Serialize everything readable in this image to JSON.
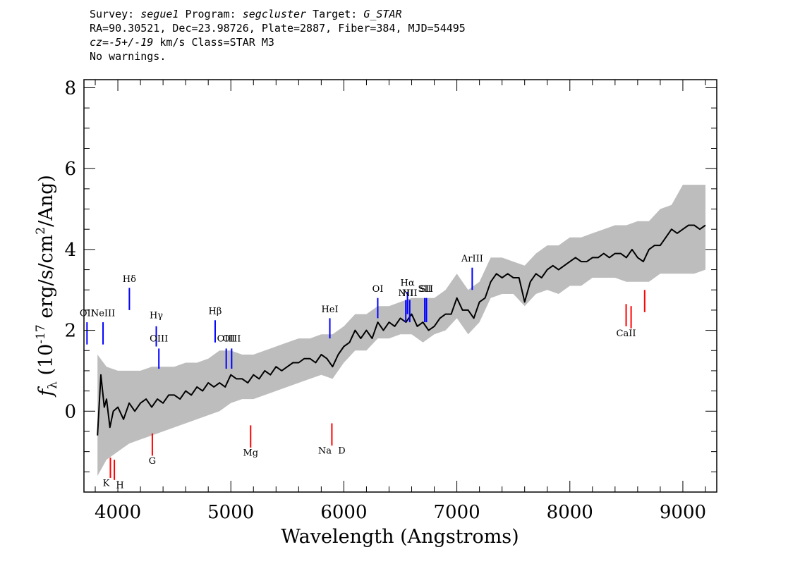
{
  "header": {
    "line1": {
      "survey_label": "Survey: ",
      "survey": "segue1",
      "program_label": " Program: ",
      "program": "segcluster",
      "target_label": " Target: ",
      "target": "G_STAR"
    },
    "line2": "RA=90.30521, Dec=23.98726, Plate=2887, Fiber=384, MJD=54495",
    "line3": {
      "cz_label": "cz=",
      "cz_value": "-5+/-19",
      "rest": " km/s Class=STAR M3"
    },
    "line4": "No warnings."
  },
  "chart_data": {
    "type": "line",
    "xlabel": "Wavelength (Angstroms)",
    "ylabel_parts": {
      "f": "f",
      "sub": "λ",
      "pre": " (10",
      "exp": "-17",
      "mid": " erg/s/cm",
      "exp2": "2",
      "post": "/Ang)"
    },
    "xlim": [
      3700,
      9300
    ],
    "ylim": [
      -2.0,
      8.2
    ],
    "xticks": [
      4000,
      5000,
      6000,
      7000,
      8000,
      9000
    ],
    "xtick_labels": [
      "4000",
      "5000",
      "6000",
      "7000",
      "8000",
      "9000"
    ],
    "yticks": [
      0,
      2,
      4,
      6,
      8
    ],
    "ytick_labels": [
      "0",
      "2",
      "4",
      "6",
      "8"
    ],
    "grid": false,
    "series": [
      {
        "role": "error-band",
        "color": "#bdbdbd",
        "x": [
          3820,
          3900,
          4000,
          4100,
          4200,
          4300,
          4400,
          4500,
          4600,
          4700,
          4800,
          4900,
          5000,
          5100,
          5200,
          5300,
          5400,
          5500,
          5600,
          5700,
          5800,
          5900,
          6000,
          6100,
          6200,
          6300,
          6400,
          6500,
          6600,
          6700,
          6800,
          6900,
          7000,
          7100,
          7200,
          7300,
          7400,
          7500,
          7600,
          7700,
          7800,
          7900,
          8000,
          8100,
          8200,
          8300,
          8400,
          8500,
          8600,
          8700,
          8800,
          8900,
          9000,
          9100,
          9200
        ],
        "lower": [
          -1.6,
          -1.2,
          -1.0,
          -0.8,
          -0.7,
          -0.6,
          -0.5,
          -0.4,
          -0.3,
          -0.2,
          -0.1,
          0.0,
          0.2,
          0.3,
          0.3,
          0.4,
          0.5,
          0.6,
          0.7,
          0.8,
          0.9,
          0.8,
          1.2,
          1.5,
          1.5,
          1.8,
          1.8,
          1.9,
          1.9,
          1.7,
          1.9,
          2.0,
          2.3,
          1.9,
          2.2,
          2.8,
          2.9,
          2.9,
          2.6,
          2.9,
          3.0,
          2.9,
          3.1,
          3.1,
          3.3,
          3.3,
          3.3,
          3.2,
          3.2,
          3.2,
          3.4,
          3.4,
          3.4,
          3.4,
          3.5
        ],
        "upper": [
          1.4,
          1.1,
          1.0,
          1.0,
          1.0,
          1.1,
          1.1,
          1.1,
          1.2,
          1.2,
          1.3,
          1.5,
          1.5,
          1.4,
          1.4,
          1.5,
          1.6,
          1.7,
          1.8,
          1.8,
          1.9,
          1.9,
          2.1,
          2.4,
          2.4,
          2.6,
          2.6,
          2.7,
          2.8,
          2.8,
          2.8,
          3.0,
          3.4,
          3.0,
          3.2,
          3.8,
          3.8,
          3.7,
          3.6,
          3.9,
          4.1,
          4.1,
          4.3,
          4.3,
          4.4,
          4.5,
          4.6,
          4.6,
          4.7,
          4.7,
          5.0,
          5.1,
          5.6,
          5.6,
          5.6
        ]
      },
      {
        "role": "flux",
        "color": "#000000",
        "x": [
          3820,
          3850,
          3880,
          3900,
          3930,
          3960,
          4000,
          4050,
          4100,
          4150,
          4200,
          4250,
          4300,
          4350,
          4400,
          4450,
          4500,
          4550,
          4600,
          4650,
          4700,
          4750,
          4800,
          4850,
          4900,
          4950,
          5000,
          5050,
          5100,
          5150,
          5200,
          5250,
          5300,
          5350,
          5400,
          5450,
          5500,
          5550,
          5600,
          5650,
          5700,
          5750,
          5800,
          5850,
          5900,
          5950,
          6000,
          6050,
          6100,
          6150,
          6200,
          6250,
          6300,
          6350,
          6400,
          6450,
          6500,
          6550,
          6600,
          6650,
          6700,
          6750,
          6800,
          6850,
          6900,
          6950,
          7000,
          7050,
          7100,
          7150,
          7200,
          7250,
          7300,
          7350,
          7400,
          7450,
          7500,
          7550,
          7600,
          7650,
          7700,
          7750,
          7800,
          7850,
          7900,
          7950,
          8000,
          8050,
          8100,
          8150,
          8200,
          8250,
          8300,
          8350,
          8400,
          8450,
          8500,
          8550,
          8600,
          8650,
          8700,
          8750,
          8800,
          8850,
          8900,
          8950,
          9000,
          9050,
          9100,
          9150,
          9200
        ],
        "y": [
          -0.6,
          0.9,
          0.1,
          0.3,
          -0.4,
          0.0,
          0.1,
          -0.2,
          0.2,
          0.0,
          0.2,
          0.3,
          0.1,
          0.3,
          0.2,
          0.4,
          0.4,
          0.3,
          0.5,
          0.4,
          0.6,
          0.5,
          0.7,
          0.6,
          0.7,
          0.6,
          0.9,
          0.8,
          0.8,
          0.7,
          0.9,
          0.8,
          1.0,
          0.9,
          1.1,
          1.0,
          1.1,
          1.2,
          1.2,
          1.3,
          1.3,
          1.2,
          1.4,
          1.3,
          1.1,
          1.4,
          1.6,
          1.7,
          2.0,
          1.8,
          2.0,
          1.8,
          2.2,
          2.0,
          2.2,
          2.1,
          2.3,
          2.2,
          2.4,
          2.1,
          2.2,
          2.0,
          2.1,
          2.3,
          2.4,
          2.4,
          2.8,
          2.5,
          2.5,
          2.3,
          2.7,
          2.8,
          3.2,
          3.4,
          3.3,
          3.4,
          3.3,
          3.3,
          2.7,
          3.2,
          3.4,
          3.3,
          3.5,
          3.6,
          3.5,
          3.6,
          3.7,
          3.8,
          3.7,
          3.7,
          3.8,
          3.8,
          3.9,
          3.8,
          3.9,
          3.9,
          3.8,
          4.0,
          3.8,
          3.7,
          4.0,
          4.1,
          4.1,
          4.3,
          4.5,
          4.4,
          4.5,
          4.6,
          4.6,
          4.5,
          4.6
        ]
      }
    ],
    "emission_lines": [
      {
        "label": "OII",
        "x": 3727,
        "y0": 1.65,
        "y1": 2.2,
        "label_y": 2.35,
        "color": "#0000ff"
      },
      {
        "label": "NeIII",
        "x": 3869,
        "y0": 1.65,
        "y1": 2.2,
        "label_y": 2.35,
        "color": "#0000ff"
      },
      {
        "label": "Hδ",
        "x": 4102,
        "y0": 2.5,
        "y1": 3.05,
        "label_y": 3.2,
        "color": "#0000ff"
      },
      {
        "label": "Hγ",
        "x": 4340,
        "y0": 1.6,
        "y1": 2.1,
        "label_y": 2.3,
        "color": "#0000ff"
      },
      {
        "label": "OIII",
        "x": 4363,
        "y0": 1.05,
        "y1": 1.55,
        "label_y": 1.72,
        "color": "#0000ff"
      },
      {
        "label": "Hβ",
        "x": 4861,
        "y0": 1.7,
        "y1": 2.25,
        "label_y": 2.4,
        "color": "#0000ff"
      },
      {
        "label": "OIII",
        "x": 4959,
        "y0": 1.05,
        "y1": 1.55,
        "label_y": 1.72,
        "color": "#0000ff"
      },
      {
        "label": "OIII",
        "x": 5007,
        "y0": 1.05,
        "y1": 1.55,
        "label_y": 1.72,
        "color": "#0000ff"
      },
      {
        "label": "HeI",
        "x": 5876,
        "y0": 1.8,
        "y1": 2.3,
        "label_y": 2.45,
        "color": "#0000ff"
      },
      {
        "label": "OI",
        "x": 6300,
        "y0": 2.3,
        "y1": 2.8,
        "label_y": 2.95,
        "color": "#0000ff"
      },
      {
        "label": "NII",
        "x": 6548,
        "y0": 2.2,
        "y1": 2.75,
        "label_y": 2.85,
        "color": "#0000ff"
      },
      {
        "label": "Hα",
        "x": 6563,
        "y0": 2.4,
        "y1": 2.95,
        "label_y": 3.1,
        "color": "#0000ff"
      },
      {
        "label": "NII",
        "x": 6583,
        "y0": 2.2,
        "y1": 2.75,
        "label_y": 2.85,
        "color": "#0000ff"
      },
      {
        "label": "SII",
        "x": 6716,
        "y0": 2.2,
        "y1": 2.8,
        "label_y": 2.95,
        "color": "#0000ff"
      },
      {
        "label": "SII",
        "x": 6731,
        "y0": 2.2,
        "y1": 2.8,
        "label_y": 2.95,
        "color": "#0000ff"
      },
      {
        "label": "ArIII",
        "x": 7136,
        "y0": 3.0,
        "y1": 3.55,
        "label_y": 3.7,
        "color": "#0000ff"
      }
    ],
    "absorption_lines": [
      {
        "label": "K",
        "x": 3934,
        "y0": -1.15,
        "y1": -1.65,
        "label_y": -1.85,
        "color": "#ff0000"
      },
      {
        "label": "H",
        "x": 3969,
        "y0": -1.2,
        "y1": -1.7,
        "label_y": -1.9,
        "color": "#ff0000"
      },
      {
        "label": "G",
        "x": 4305,
        "y0": -0.55,
        "y1": -1.1,
        "label_y": -1.3,
        "color": "#ff0000"
      },
      {
        "label": "Mg",
        "x": 5175,
        "y0": -0.35,
        "y1": -0.9,
        "label_y": -1.1,
        "color": "#ff0000"
      },
      {
        "label": "Na",
        "x": 5894,
        "y0": -0.3,
        "y1": -0.85,
        "label_y": -1.05,
        "color": "#ff0000"
      },
      {
        "label": "D",
        "x": 5894,
        "label_only": true,
        "label_y": -1.05,
        "color": "#ff0000"
      },
      {
        "label": "CaII",
        "x": 8498,
        "y0": 2.1,
        "y1": 2.65,
        "label_y": 1.85,
        "color": "#ff0000"
      },
      {
        "label": "CaII",
        "x": 8542,
        "y0": 2.05,
        "y1": 2.6,
        "color": "#ff0000"
      },
      {
        "label": "CaII",
        "x": 8662,
        "y0": 2.45,
        "y1": 3.0,
        "color": "#ff0000"
      }
    ]
  }
}
